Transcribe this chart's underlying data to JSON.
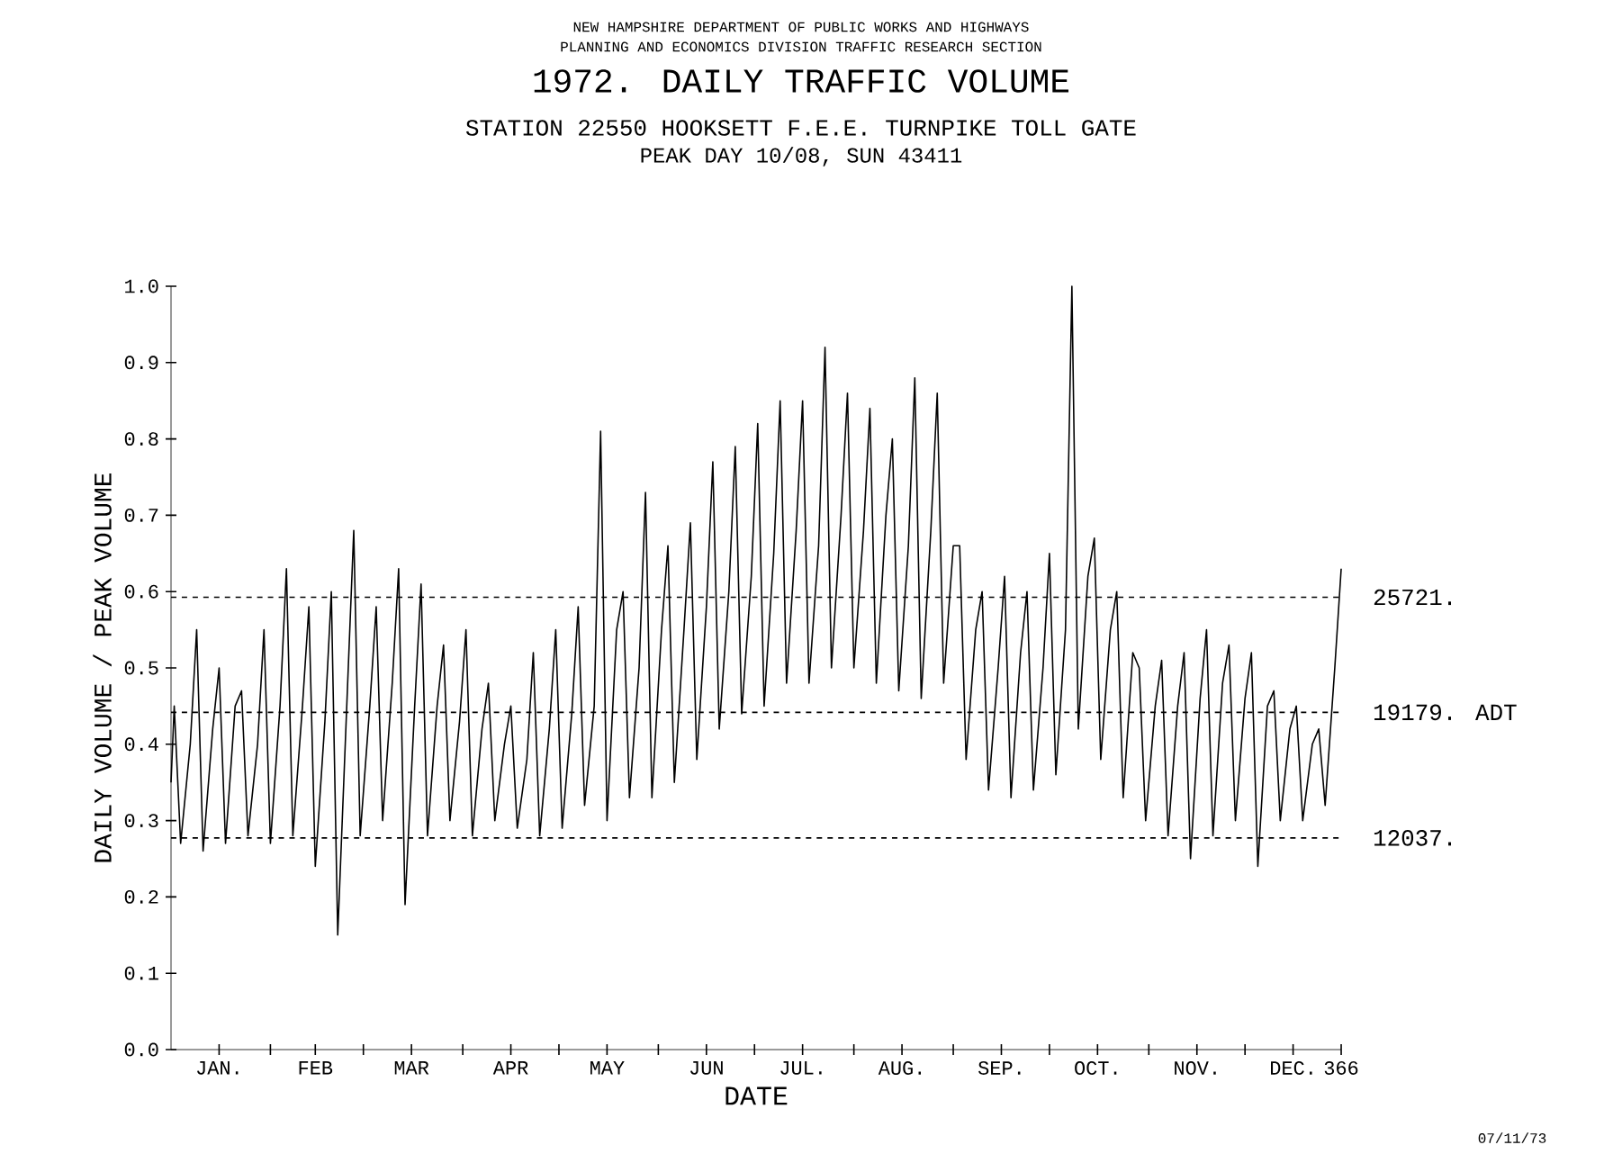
{
  "chart_data": {
    "type": "line",
    "title": "1972. DAILY TRAFFIC VOLUME",
    "subtitle": "STATION 22550 HOOKSETT F.E.E. TURNPIKE TOLL GATE",
    "xlabel": "DATE",
    "ylabel": "DAILY VOLUME / PEAK VOLUME",
    "annotations": [
      "NEW HAMPSHIRE DEPARTMENT OF PUBLIC WORKS AND HIGHWAYS",
      "PLANNING AND ECONOMICS DIVISION  TRAFFIC RESEARCH SECTION",
      "PEAK DAY 10/08, SUN 43411",
      "07/11/73",
      {
        "text": "25721.",
        "x": "1972-12-31",
        "y": 0.5925
      },
      {
        "text": "19179. ADT",
        "x": "1972-12-31",
        "y": 0.4418
      },
      {
        "text": "12037.",
        "x": "1972-12-31",
        "y": 0.2773
      }
    ],
    "x": [
      "1972-01-01",
      "1972-01-02",
      "1972-01-04",
      "1972-01-07",
      "1972-01-09",
      "1972-01-11",
      "1972-01-14",
      "1972-01-16",
      "1972-01-18",
      "1972-01-21",
      "1972-01-23",
      "1972-01-25",
      "1972-01-28",
      "1972-01-30",
      "1972-02-01",
      "1972-02-04",
      "1972-02-06",
      "1972-02-08",
      "1972-02-11",
      "1972-02-13",
      "1972-02-15",
      "1972-02-18",
      "1972-02-20",
      "1972-02-22",
      "1972-02-25",
      "1972-02-27",
      "1972-02-29",
      "1972-03-03",
      "1972-03-05",
      "1972-03-07",
      "1972-03-10",
      "1972-03-12",
      "1972-03-14",
      "1972-03-17",
      "1972-03-19",
      "1972-03-21",
      "1972-03-24",
      "1972-03-26",
      "1972-03-28",
      "1972-03-31",
      "1972-04-02",
      "1972-04-04",
      "1972-04-07",
      "1972-04-09",
      "1972-04-11",
      "1972-04-14",
      "1972-04-16",
      "1972-04-18",
      "1972-04-21",
      "1972-04-23",
      "1972-04-25",
      "1972-04-28",
      "1972-04-30",
      "1972-05-02",
      "1972-05-05",
      "1972-05-07",
      "1972-05-09",
      "1972-05-12",
      "1972-05-14",
      "1972-05-16",
      "1972-05-19",
      "1972-05-21",
      "1972-05-23",
      "1972-05-26",
      "1972-05-28",
      "1972-05-30",
      "1972-06-02",
      "1972-06-04",
      "1972-06-06",
      "1972-06-09",
      "1972-06-11",
      "1972-06-13",
      "1972-06-16",
      "1972-06-18",
      "1972-06-20",
      "1972-06-23",
      "1972-06-25",
      "1972-06-27",
      "1972-06-30",
      "1972-07-02",
      "1972-07-04",
      "1972-07-07",
      "1972-07-09",
      "1972-07-11",
      "1972-07-14",
      "1972-07-16",
      "1972-07-18",
      "1972-07-21",
      "1972-07-23",
      "1972-07-25",
      "1972-07-28",
      "1972-07-30",
      "1972-08-01",
      "1972-08-04",
      "1972-08-06",
      "1972-08-08",
      "1972-08-11",
      "1972-08-13",
      "1972-08-15",
      "1972-08-18",
      "1972-08-20",
      "1972-08-22",
      "1972-08-25",
      "1972-08-27",
      "1972-08-29",
      "1972-09-01",
      "1972-09-03",
      "1972-09-05",
      "1972-09-08",
      "1972-09-10",
      "1972-09-12",
      "1972-09-15",
      "1972-09-17",
      "1972-09-19",
      "1972-09-22",
      "1972-09-24",
      "1972-09-26",
      "1972-09-29",
      "1972-10-01",
      "1972-10-03",
      "1972-10-06",
      "1972-10-08",
      "1972-10-10",
      "1972-10-13",
      "1972-10-15",
      "1972-10-17",
      "1972-10-20",
      "1972-10-22",
      "1972-10-24",
      "1972-10-27",
      "1972-10-29",
      "1972-10-31",
      "1972-11-03",
      "1972-11-05",
      "1972-11-07",
      "1972-11-10",
      "1972-11-12",
      "1972-11-14",
      "1972-11-17",
      "1972-11-19",
      "1972-11-21",
      "1972-11-24",
      "1972-11-26",
      "1972-11-28",
      "1972-12-01",
      "1972-12-03",
      "1972-12-05",
      "1972-12-08",
      "1972-12-10",
      "1972-12-12",
      "1972-12-15",
      "1972-12-17",
      "1972-12-19",
      "1972-12-22",
      "1972-12-24",
      "1972-12-26",
      "1972-12-29",
      "1972-12-31"
    ],
    "series": [
      {
        "color": "#000000",
        "line_style": "solid",
        "values": [
          0.35,
          0.45,
          0.27,
          0.4,
          0.55,
          0.26,
          0.42,
          0.5,
          0.27,
          0.45,
          0.47,
          0.28,
          0.4,
          0.55,
          0.27,
          0.45,
          0.63,
          0.28,
          0.45,
          0.58,
          0.24,
          0.43,
          0.6,
          0.15,
          0.47,
          0.68,
          0.28,
          0.45,
          0.58,
          0.3,
          0.48,
          0.63,
          0.19,
          0.45,
          0.61,
          0.28,
          0.45,
          0.53,
          0.3,
          0.43,
          0.55,
          0.28,
          0.42,
          0.48,
          0.3,
          0.4,
          0.45,
          0.29,
          0.38,
          0.52,
          0.28,
          0.42,
          0.55,
          0.29,
          0.44,
          0.58,
          0.32,
          0.45,
          0.81,
          0.3,
          0.55,
          0.6,
          0.33,
          0.5,
          0.73,
          0.33,
          0.55,
          0.66,
          0.35,
          0.55,
          0.69,
          0.38,
          0.58,
          0.77,
          0.42,
          0.6,
          0.79,
          0.44,
          0.62,
          0.82,
          0.45,
          0.65,
          0.85,
          0.48,
          0.68,
          0.85,
          0.48,
          0.66,
          0.92,
          0.5,
          0.7,
          0.86,
          0.5,
          0.68,
          0.84,
          0.48,
          0.7,
          0.8,
          0.47,
          0.66,
          0.88,
          0.46,
          0.68,
          0.86,
          0.48,
          0.66,
          0.66,
          0.38,
          0.55,
          0.6,
          0.34,
          0.5,
          0.62,
          0.33,
          0.52,
          0.6,
          0.34,
          0.5,
          0.65,
          0.36,
          0.55,
          1.0,
          0.42,
          0.62,
          0.67,
          0.38,
          0.55,
          0.6,
          0.33,
          0.52,
          0.5,
          0.3,
          0.45,
          0.51,
          0.28,
          0.45,
          0.52,
          0.25,
          0.46,
          0.55,
          0.28,
          0.48,
          0.53,
          0.3,
          0.46,
          0.52,
          0.24,
          0.45,
          0.47,
          0.3,
          0.42,
          0.45,
          0.3,
          0.4,
          0.42,
          0.32,
          0.5,
          0.63
        ]
      }
    ],
    "xlim": [
      "1972-01-01",
      "1972-12-31"
    ],
    "xticks": [
      {
        "value": "1972-01-16",
        "label": "JAN."
      },
      {
        "value": "1972-02-01",
        "label": null
      },
      {
        "value": "1972-02-15",
        "label": "FEB"
      },
      {
        "value": "1972-03-01",
        "label": null
      },
      {
        "value": "1972-03-16",
        "label": "MAR"
      },
      {
        "value": "1972-04-01",
        "label": null
      },
      {
        "value": "1972-04-16",
        "label": "APR"
      },
      {
        "value": "1972-05-01",
        "label": null
      },
      {
        "value": "1972-05-16",
        "label": "MAY"
      },
      {
        "value": "1972-06-01",
        "label": null
      },
      {
        "value": "1972-06-16",
        "label": "JUN"
      },
      {
        "value": "1972-07-01",
        "label": null
      },
      {
        "value": "1972-07-16",
        "label": "JUL."
      },
      {
        "value": "1972-08-01",
        "label": null
      },
      {
        "value": "1972-08-16",
        "label": "AUG."
      },
      {
        "value": "1972-09-01",
        "label": null
      },
      {
        "value": "1972-09-16",
        "label": "SEP."
      },
      {
        "value": "1972-10-01",
        "label": null
      },
      {
        "value": "1972-10-16",
        "label": "OCT."
      },
      {
        "value": "1972-11-01",
        "label": null
      },
      {
        "value": "1972-11-16",
        "label": "NOV."
      },
      {
        "value": "1972-12-01",
        "label": null
      },
      {
        "value": "1972-12-16",
        "label": "DEC."
      },
      {
        "value": "1972-12-31",
        "label": "366"
      }
    ],
    "ylim": [
      0,
      1
    ],
    "yticks": [
      {
        "value": 0,
        "label": "0.0"
      },
      {
        "value": 0.1,
        "label": "0.1"
      },
      {
        "value": 0.2,
        "label": "0.2"
      },
      {
        "value": 0.3,
        "label": "0.3"
      },
      {
        "value": 0.4,
        "label": "0.4"
      },
      {
        "value": 0.5,
        "label": "0.5"
      },
      {
        "value": 0.6,
        "label": "0.6"
      },
      {
        "value": 0.7,
        "label": "0.7"
      },
      {
        "value": 0.8,
        "label": "0.8"
      },
      {
        "value": 0.9,
        "label": "0.9"
      },
      {
        "value": 1,
        "label": "1.0"
      }
    ],
    "ref_lines": [
      {
        "axis": "y",
        "value": 0.5925,
        "line_style": "dashed",
        "color": "#000000"
      },
      {
        "axis": "y",
        "value": 0.4418,
        "line_style": "dashed",
        "color": "#000000"
      },
      {
        "axis": "y",
        "value": 0.2773,
        "line_style": "dashed",
        "color": "#000000"
      }
    ],
    "marker": "none",
    "grid": false
  }
}
